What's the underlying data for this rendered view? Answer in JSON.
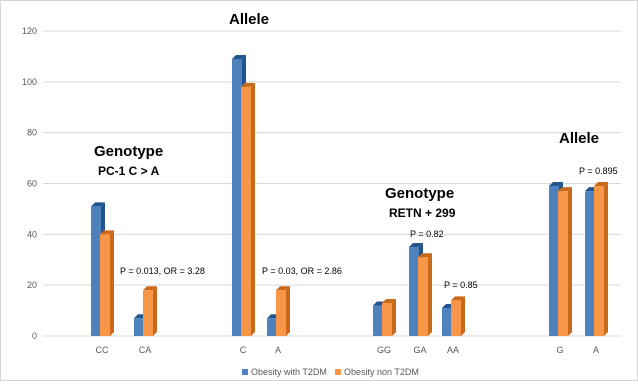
{
  "chart_data": {
    "type": "bar",
    "title": "",
    "xlabel": "",
    "ylabel": "",
    "ylim": [
      0,
      120
    ],
    "yticks": [
      0,
      20,
      40,
      60,
      80,
      100,
      120
    ],
    "grid": true,
    "legend_position": "bottom-center",
    "categories": [
      "CC",
      "CA",
      "C",
      "A",
      "GG",
      "GA",
      "AA",
      "G",
      "A"
    ],
    "series": [
      {
        "name": "Obesity with T2DM",
        "color": "#4f81bd",
        "values": [
          51,
          7,
          109,
          7,
          12,
          35,
          11,
          59,
          57
        ]
      },
      {
        "name": "Obesity non T2DM",
        "color": "#f79646",
        "values": [
          40,
          18,
          98,
          18,
          13,
          31,
          14,
          57,
          59
        ]
      }
    ],
    "annotations": {
      "genotype1_title": "Genotype",
      "genotype1_sub": "PC-1 C > A",
      "allele1_title": "Allele",
      "genotype2_title": "Genotype",
      "genotype2_sub": "RETN + 299",
      "allele2_title": "Allele",
      "p_ca": "P = 0.013, OR = 3.28",
      "p_a": "P = 0.03, OR = 2.86",
      "p_ga": "P = 0.82",
      "p_aa": "P = 0.85",
      "p_allele2": "P = 0.895"
    }
  }
}
